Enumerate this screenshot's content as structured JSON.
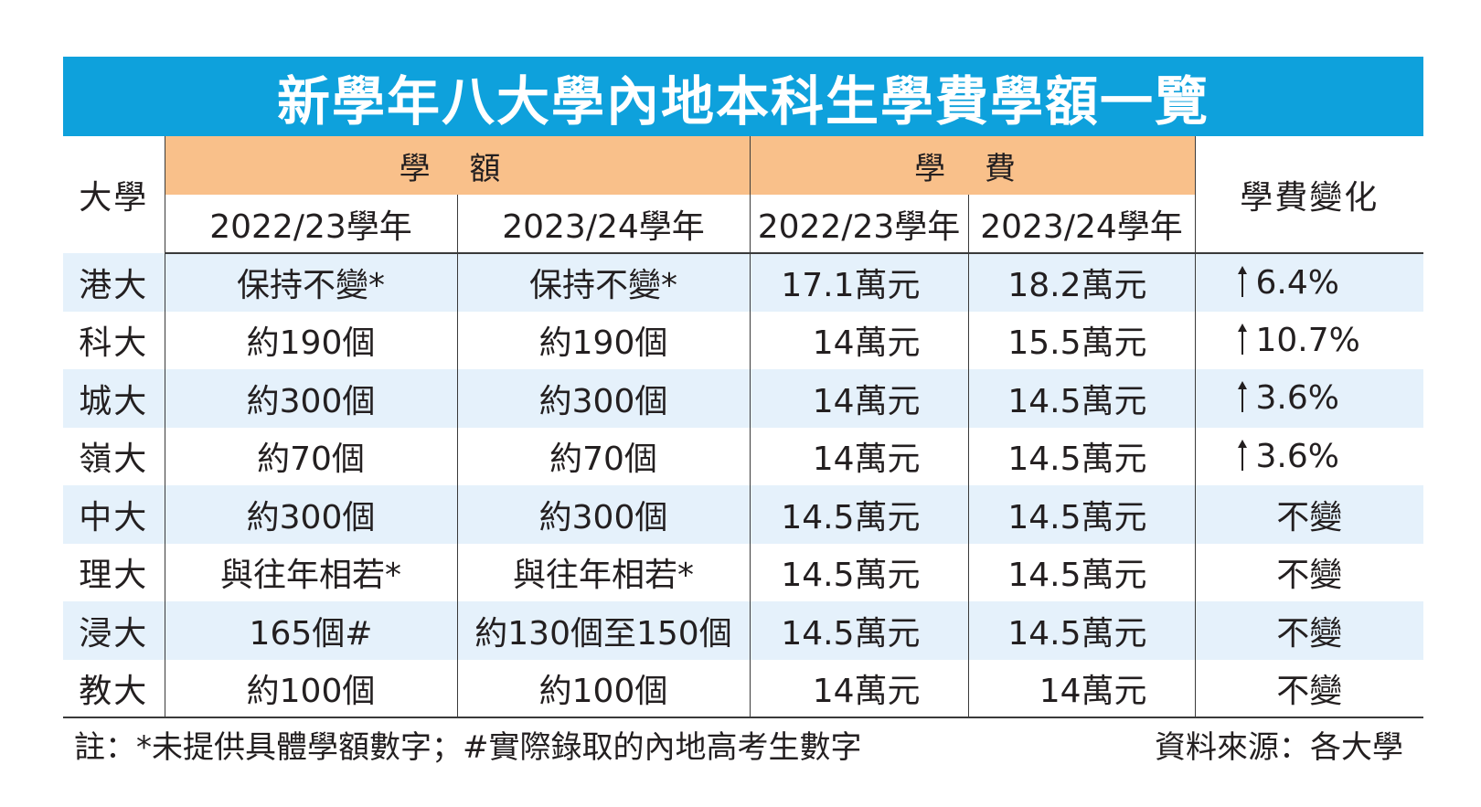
{
  "title": "新學年八大學內地本科生學費學額一覽",
  "headers": {
    "university": "大學",
    "quota_group": "學 額",
    "fee_group": "學 費",
    "change": "學費變化",
    "quota_2223": "2022/23學年",
    "quota_2324": "2023/24學年",
    "fee_2223": "2022/23學年",
    "fee_2324": "2023/24學年"
  },
  "rows": [
    {
      "uni": "港大",
      "q2223": "保持不變*",
      "q2324": "保持不變*",
      "f2223": "17.1萬元",
      "f2324": "18.2萬元",
      "change": "6.4%",
      "up": true
    },
    {
      "uni": "科大",
      "q2223": "約190個",
      "q2324": "約190個",
      "f2223": "14萬元",
      "f2324": "15.5萬元",
      "change": "10.7%",
      "up": true
    },
    {
      "uni": "城大",
      "q2223": "約300個",
      "q2324": "約300個",
      "f2223": "14萬元",
      "f2324": "14.5萬元",
      "change": "3.6%",
      "up": true
    },
    {
      "uni": "嶺大",
      "q2223": "約70個",
      "q2324": "約70個",
      "f2223": "14萬元",
      "f2324": "14.5萬元",
      "change": "3.6%",
      "up": true
    },
    {
      "uni": "中大",
      "q2223": "約300個",
      "q2324": "約300個",
      "f2223": "14.5萬元",
      "f2324": "14.5萬元",
      "change": "不變",
      "up": false
    },
    {
      "uni": "理大",
      "q2223": "與往年相若*",
      "q2324": "與往年相若*",
      "f2223": "14.5萬元",
      "f2324": "14.5萬元",
      "change": "不變",
      "up": false
    },
    {
      "uni": "浸大",
      "q2223": "165個#",
      "q2324": "約130個至150個",
      "f2223": "14.5萬元",
      "f2324": "14.5萬元",
      "change": "不變",
      "up": false
    },
    {
      "uni": "教大",
      "q2223": "約100個",
      "q2324": "約100個",
      "f2223": "14萬元",
      "f2324": "14萬元",
      "change": "不變",
      "up": false
    }
  ],
  "footnote": "註：*未提供具體學額數字；#實際錄取的內地高考生數字",
  "source": "資料來源：各大學",
  "colors": {
    "title_bg": "#0ea1dc",
    "group_header_bg": "#f9c08a",
    "stripe_bg": "#e5f1fb"
  }
}
